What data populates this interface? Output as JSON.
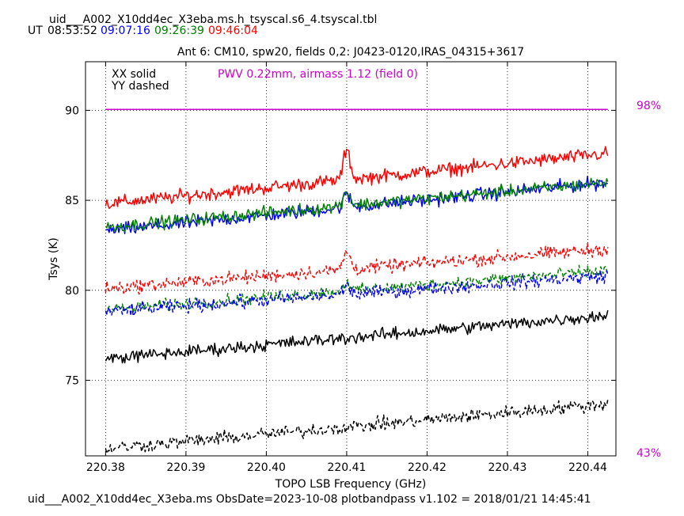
{
  "header": {
    "filename": "uid___A002_X10dd4ec_X3eba.ms.h_tsyscal.s6_4.tsyscal.tbl",
    "ut_label": "UT",
    "times": [
      {
        "text": "08:53:52",
        "color": "#000000"
      },
      {
        "text": "09:07:16",
        "color": "#0000ff"
      },
      {
        "text": "09:26:39",
        "color": "#008000"
      },
      {
        "text": "09:46:04",
        "color": "#ff0000"
      }
    ]
  },
  "footer": {
    "text": "uid___A002_X10dd4ec_X3eba.ms  ObsDate=2023-10-08   plotbandpass v1.102 = 2018/01/21 14:45:41"
  },
  "chart_data": {
    "type": "line",
    "title": "Ant 6: CM10,  spw20,  fields 0,2: J0423-0120,IRAS_04315+3617",
    "xlabel": "TOPO LSB Frequency (GHz)",
    "ylabel": "Tsys (K)",
    "xlim": [
      220.3775,
      220.4435
    ],
    "ylim": [
      70.8,
      92.7
    ],
    "xticks": [
      220.38,
      220.39,
      220.4,
      220.41,
      220.42,
      220.43,
      220.44
    ],
    "xtick_labels": [
      "220.38",
      "220.39",
      "220.40",
      "220.41",
      "220.42",
      "220.43",
      "220.44"
    ],
    "yticks": [
      75,
      80,
      85,
      90
    ],
    "ytick_labels": [
      "75",
      "80",
      "85",
      "90"
    ],
    "grid": true,
    "legend": {
      "placement": "top-left",
      "entries": [
        "XX solid",
        "YY dashed"
      ]
    },
    "annotation": {
      "text": "PWV 0.22mm, airmass 1.12 (field 0)",
      "color": "#cc00cc"
    },
    "right_axis_labels": [
      {
        "text": "98%",
        "y": 90.3,
        "color": "#cc00cc"
      },
      {
        "text": "43%",
        "y": 70.3,
        "color": "#cc00cc"
      }
    ],
    "freq_start": 220.38,
    "freq_end": 220.4425,
    "series": [
      {
        "color": "#cc00cc",
        "style": "solid",
        "start": 90.05,
        "end": 90.05,
        "noise": 0.0,
        "spike": 0.0
      },
      {
        "color": "#ff0000",
        "style": "solid",
        "start": 84.8,
        "end": 87.6,
        "noise": 0.32,
        "spike": 1.6
      },
      {
        "color": "#0000ff",
        "style": "solid",
        "start": 83.3,
        "end": 86.0,
        "noise": 0.32,
        "spike": 0.7
      },
      {
        "color": "#008000",
        "style": "solid",
        "start": 83.5,
        "end": 86.0,
        "noise": 0.3,
        "spike": 0.8
      },
      {
        "color": "#ff0000",
        "style": "dashed",
        "start": 80.1,
        "end": 82.3,
        "noise": 0.32,
        "spike": 1.0
      },
      {
        "color": "#008000",
        "style": "dashed",
        "start": 78.9,
        "end": 81.1,
        "noise": 0.3,
        "spike": 0.5
      },
      {
        "color": "#0000ff",
        "style": "dashed",
        "start": 78.8,
        "end": 80.8,
        "noise": 0.32,
        "spike": 0.5
      },
      {
        "color": "#000000",
        "style": "solid",
        "start": 76.2,
        "end": 78.6,
        "noise": 0.3,
        "spike": 0.0
      },
      {
        "color": "#000000",
        "style": "dashed",
        "start": 71.2,
        "end": 73.7,
        "noise": 0.32,
        "spike": 0.0
      }
    ]
  }
}
